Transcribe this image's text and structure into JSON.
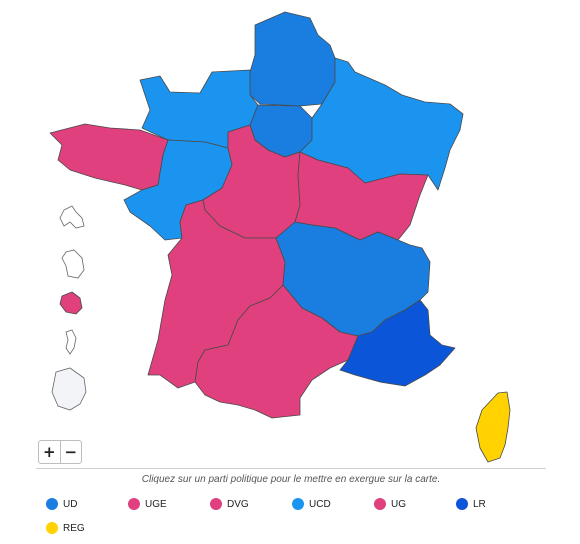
{
  "colors": {
    "UD": "#1a7de0",
    "UGE": "#e0407d",
    "DVG": "#e0407d",
    "UCD": "#1b94ef",
    "UG": "#e0407d",
    "LR": "#0b55d8",
    "REG": "#ffd200"
  },
  "regions": [
    {
      "name": "Hauts-de-France",
      "party": "UD"
    },
    {
      "name": "Normandie",
      "party": "UCD"
    },
    {
      "name": "Île-de-France",
      "party": "UD"
    },
    {
      "name": "Grand Est",
      "party": "UCD"
    },
    {
      "name": "Bretagne",
      "party": "UGE"
    },
    {
      "name": "Pays de la Loire",
      "party": "UCD"
    },
    {
      "name": "Centre-Val de Loire",
      "party": "DVG"
    },
    {
      "name": "Bourgogne-Franche-Comté",
      "party": "UG"
    },
    {
      "name": "Nouvelle-Aquitaine",
      "party": "UG"
    },
    {
      "name": "Auvergne-Rhône-Alpes",
      "party": "UD"
    },
    {
      "name": "Occitanie",
      "party": "UG"
    },
    {
      "name": "Provence-Alpes-Côte d'Azur",
      "party": "LR"
    },
    {
      "name": "Corse",
      "party": "REG"
    },
    {
      "name": "Guadeloupe",
      "party": ""
    },
    {
      "name": "Martinique",
      "party": ""
    },
    {
      "name": "La Réunion",
      "party": "UG"
    },
    {
      "name": "Mayotte",
      "party": ""
    },
    {
      "name": "Guyane",
      "party": ""
    }
  ],
  "zoom": {
    "in": "+",
    "out": "−"
  },
  "caption": "Cliquez sur un parti politique pour le mettre en exergue sur la carte.",
  "legend": [
    {
      "label": "UD",
      "color": "#1a7de0"
    },
    {
      "label": "UGE",
      "color": "#e0407d"
    },
    {
      "label": "DVG",
      "color": "#e0407d"
    },
    {
      "label": "UCD",
      "color": "#1b94ef"
    },
    {
      "label": "UG",
      "color": "#e0407d"
    },
    {
      "label": "LR",
      "color": "#0b55d8"
    },
    {
      "label": "REG",
      "color": "#ffd200"
    }
  ]
}
